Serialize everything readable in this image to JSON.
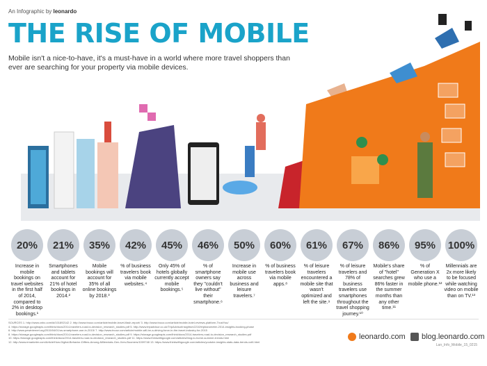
{
  "header": {
    "byline_prefix": "An Infographic by",
    "byline_brand": "leonardo",
    "title": "THE RISE OF MOBILE",
    "subtitle": "Mobile isn't a nice-to-have, it's a must-have in a world where more travel shoppers than ever are searching for your property via mobile devices."
  },
  "stats": [
    {
      "value": "20%",
      "text": "Increase in mobile bookings on travel websites in the first half of 2014, compared to 2% in desktop bookings.¹"
    },
    {
      "value": "21%",
      "text": "Smartphones and tablets account for 21% of hotel bookings in 2014.²"
    },
    {
      "value": "35%",
      "text": "Mobile bookings will account for 35% of all online bookings by 2018.³"
    },
    {
      "value": "42%",
      "text": "% of business travelers book via mobile websites.⁴"
    },
    {
      "value": "45%",
      "text": "Only 45% of hotels globally currently accept mobile bookings.⁵"
    },
    {
      "value": "46%",
      "text": "% of smartphone owners say they \"couldn't live without\" their smartphone.⁶"
    },
    {
      "value": "50%",
      "text": "Increase in mobile use across business and leisure travelers.⁷"
    },
    {
      "value": "60%",
      "text": "% of business travelers book via mobile apps.⁸"
    },
    {
      "value": "61%",
      "text": "% of leisure travelers encountered a mobile site that wasn't optimized and left the site.⁹"
    },
    {
      "value": "67%",
      "text": "% of leisure travelers and 78% of business travelers use smartphones throughout the travel shopping journey.¹⁰"
    },
    {
      "value": "86%",
      "text": "Mobile's share of \"hotel\" searches grew 86% faster in the summer months than any other time.¹¹"
    },
    {
      "value": "95%",
      "text": "% of Generation X who use a mobile phone.¹²"
    },
    {
      "value": "100%",
      "text": "Millennials are 2x more likely to be focused while watching video on mobile than on TV.¹³"
    }
  ],
  "sources": [
    "SOURCES    1. http://www.cnbc.com/id/101892142     2. http://www.tnooz.com/article/mobile-travel-flash-report/     3. http://www.tnooz.com/article/mobile-hotel-reviews-platform-TrustYou/",
    "4. https://storage.googleapis.com/think/docs/2014-travelers-road-to-decision_research_studies.pdf     5. http://www.tripadvisor.co.uk/TripAdvisorInsights/n2210/tripbarometer-2014-insights-booking-phase",
    "6. http://www.pewinternet.org/2015/04/01/us-smartphone-use-in-2015/     7. http://www.tnooz.com/article/mobile-will-be-a-driving-force-in-the-travel-industry-for-2015",
    "8. https://storage.googleapis.com/think/docs/2014-travelers-road-to-decision_research_studies.pdf     9. https://storage.googleapis.com/think/docs/2014-travelers-road-to-decision_research_studies.pdf",
    "10. https://storage.googleapis.com/think/docs/2014-travelers-road-to-decision_research_studies.pdf     11. https://www.thinkwithgoogle.com/articles/blog-to-home-summer-trends.html",
    "12. http://www.emarketer.com/Article/How-Digital-Behavior-Differs-Among-Millennials-Gen-Xers-Boomers/1009748     13. https://www.thinkwithgoogle.com/articles/youtube-insights-stats-data-trends-vol6.html"
  ],
  "footer": {
    "site1": "leonardo.com",
    "site2": "blog.leonardo.com",
    "code": "Lan_Info_Mobile_15_0215"
  },
  "colors": {
    "title": "#1aa3c9",
    "orange": "#f07a1a",
    "circle": "#c8ced6"
  }
}
